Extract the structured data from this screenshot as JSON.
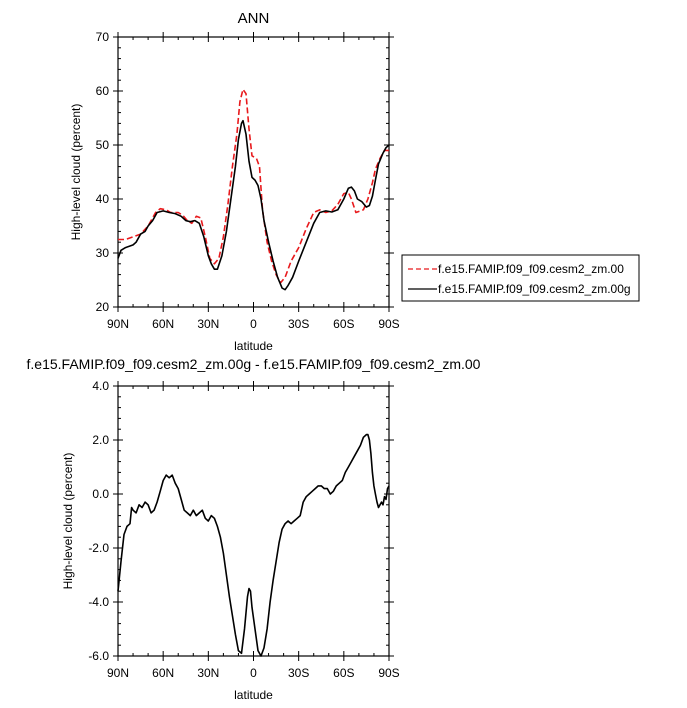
{
  "chart_data": [
    {
      "type": "line",
      "title": "ANN",
      "xlabel": "latitude",
      "ylabel": "High-level cloud (percent)",
      "xlim": [
        -90,
        90
      ],
      "ylim": [
        20,
        70
      ],
      "x_tick_values": [
        -90,
        -60,
        -30,
        0,
        30,
        60,
        90
      ],
      "x_tick_labels": [
        "90N",
        "60N",
        "30N",
        "0",
        "30S",
        "60S",
        "90S"
      ],
      "y_tick_values": [
        20,
        30,
        40,
        50,
        60,
        70
      ],
      "y_tick_labels": [
        "20",
        "30",
        "40",
        "50",
        "60",
        "70"
      ],
      "legend": "right",
      "series": [
        {
          "name": "f.e15.FAMIP.f09_f09.cesm2_zm.00",
          "color": "#e8191c",
          "dash": "dashed",
          "points": [
            [
              -90,
              32.5
            ],
            [
              -85,
              32.5
            ],
            [
              -80,
              33.0
            ],
            [
              -75,
              33.5
            ],
            [
              -70,
              35.0
            ],
            [
              -65,
              37.5
            ],
            [
              -62,
              38.2
            ],
            [
              -58,
              38.0
            ],
            [
              -55,
              37.5
            ],
            [
              -50,
              37.5
            ],
            [
              -47,
              37.0
            ],
            [
              -44,
              36.0
            ],
            [
              -41,
              35.5
            ],
            [
              -38,
              36.8
            ],
            [
              -35,
              36.5
            ],
            [
              -32,
              33.0
            ],
            [
              -29,
              29.0
            ],
            [
              -26,
              28.0
            ],
            [
              -23,
              29.0
            ],
            [
              -20,
              33.0
            ],
            [
              -17,
              39.0
            ],
            [
              -14,
              46.0
            ],
            [
              -11,
              52.0
            ],
            [
              -9,
              58.0
            ],
            [
              -7,
              60.3
            ],
            [
              -5,
              59.5
            ],
            [
              -3,
              53.0
            ],
            [
              -1,
              48.0
            ],
            [
              2,
              47.5
            ],
            [
              4,
              46.0
            ],
            [
              6,
              38.0
            ],
            [
              9,
              32.0
            ],
            [
              12,
              28.5
            ],
            [
              15,
              26.0
            ],
            [
              18,
              24.5
            ],
            [
              21,
              25.5
            ],
            [
              25,
              28.5
            ],
            [
              30,
              31.0
            ],
            [
              35,
              34.5
            ],
            [
              40,
              37.5
            ],
            [
              44,
              38.0
            ],
            [
              48,
              37.5
            ],
            [
              52,
              37.8
            ],
            [
              56,
              39.0
            ],
            [
              60,
              41.0
            ],
            [
              63,
              41.2
            ],
            [
              65,
              40.0
            ],
            [
              68,
              37.5
            ],
            [
              71,
              37.8
            ],
            [
              73,
              38.0
            ],
            [
              76,
              40.0
            ],
            [
              79,
              43.0
            ],
            [
              81,
              45.5
            ],
            [
              84,
              47.5
            ],
            [
              87,
              49.0
            ],
            [
              90,
              49.0
            ]
          ]
        },
        {
          "name": "f.e15.FAMIP.f09_f09.cesm2_zm.00g",
          "color": "#000000",
          "dash": "solid",
          "points": [
            [
              -90,
              29.0
            ],
            [
              -88,
              30.5
            ],
            [
              -85,
              31.0
            ],
            [
              -82,
              31.3
            ],
            [
              -80,
              31.5
            ],
            [
              -78,
              32.0
            ],
            [
              -75,
              33.5
            ],
            [
              -72,
              34.0
            ],
            [
              -70,
              35.0
            ],
            [
              -67,
              36.0
            ],
            [
              -64,
              37.5
            ],
            [
              -60,
              37.8
            ],
            [
              -56,
              37.5
            ],
            [
              -52,
              37.3
            ],
            [
              -48,
              36.8
            ],
            [
              -45,
              36.0
            ],
            [
              -42,
              35.8
            ],
            [
              -39,
              36.0
            ],
            [
              -36,
              35.5
            ],
            [
              -33,
              33.0
            ],
            [
              -30,
              29.5
            ],
            [
              -28,
              28.0
            ],
            [
              -26,
              27.0
            ],
            [
              -24,
              27.0
            ],
            [
              -21,
              29.5
            ],
            [
              -18,
              34.0
            ],
            [
              -15,
              40.0
            ],
            [
              -12,
              46.0
            ],
            [
              -10,
              51.0
            ],
            [
              -8,
              54.0
            ],
            [
              -7,
              54.5
            ],
            [
              -5,
              52.0
            ],
            [
              -3,
              47.0
            ],
            [
              -1,
              44.0
            ],
            [
              1,
              43.5
            ],
            [
              3,
              42.5
            ],
            [
              5,
              40.0
            ],
            [
              7,
              36.0
            ],
            [
              10,
              32.0
            ],
            [
              13,
              28.5
            ],
            [
              16,
              25.5
            ],
            [
              19,
              23.5
            ],
            [
              21,
              23.2
            ],
            [
              23,
              24.0
            ],
            [
              26,
              25.5
            ],
            [
              30,
              28.5
            ],
            [
              35,
              32.0
            ],
            [
              40,
              35.5
            ],
            [
              44,
              37.5
            ],
            [
              48,
              37.8
            ],
            [
              52,
              37.6
            ],
            [
              56,
              38.0
            ],
            [
              60,
              40.0
            ],
            [
              63,
              42.0
            ],
            [
              65,
              42.2
            ],
            [
              67,
              41.5
            ],
            [
              69,
              40.0
            ],
            [
              72,
              39.5
            ],
            [
              75,
              38.5
            ],
            [
              77,
              38.8
            ],
            [
              79,
              40.5
            ],
            [
              81,
              43.5
            ],
            [
              83,
              46.5
            ],
            [
              86,
              48.5
            ],
            [
              88,
              49.5
            ],
            [
              90,
              50.0
            ]
          ]
        }
      ]
    },
    {
      "type": "line",
      "title": "f.e15.FAMIP.f09_f09.cesm2_zm.00g - f.e15.FAMIP.f09_f09.cesm2_zm.00",
      "xlabel": "latitude",
      "ylabel": "High-level cloud (percent)",
      "xlim": [
        -90,
        90
      ],
      "ylim": [
        -6.0,
        4.0
      ],
      "x_tick_values": [
        -90,
        -60,
        -30,
        0,
        30,
        60,
        90
      ],
      "x_tick_labels": [
        "90N",
        "60N",
        "30N",
        "0",
        "30S",
        "60S",
        "90S"
      ],
      "y_tick_values": [
        -6.0,
        -4.0,
        -2.0,
        0.0,
        2.0,
        4.0
      ],
      "y_tick_labels": [
        "-6.0",
        "-4.0",
        "-2.0",
        "0.0",
        "2.0",
        "4.0"
      ],
      "series": [
        {
          "color": "#000000",
          "dash": "solid",
          "points": [
            [
              -90,
              -3.6
            ],
            [
              -88,
              -2.5
            ],
            [
              -86,
              -1.5
            ],
            [
              -84,
              -1.2
            ],
            [
              -82,
              -1.1
            ],
            [
              -81,
              -0.5
            ],
            [
              -80,
              -0.6
            ],
            [
              -78,
              -0.7
            ],
            [
              -76,
              -0.4
            ],
            [
              -74,
              -0.5
            ],
            [
              -72,
              -0.3
            ],
            [
              -70,
              -0.4
            ],
            [
              -68,
              -0.7
            ],
            [
              -66,
              -0.6
            ],
            [
              -64,
              -0.3
            ],
            [
              -62,
              0.1
            ],
            [
              -60,
              0.5
            ],
            [
              -58,
              0.7
            ],
            [
              -56,
              0.6
            ],
            [
              -54,
              0.7
            ],
            [
              -52,
              0.4
            ],
            [
              -50,
              0.2
            ],
            [
              -48,
              -0.2
            ],
            [
              -46,
              -0.6
            ],
            [
              -44,
              -0.7
            ],
            [
              -42,
              -0.8
            ],
            [
              -40,
              -0.6
            ],
            [
              -38,
              -0.8
            ],
            [
              -36,
              -0.7
            ],
            [
              -34,
              -0.6
            ],
            [
              -32,
              -0.9
            ],
            [
              -30,
              -1.0
            ],
            [
              -28,
              -0.8
            ],
            [
              -26,
              -0.9
            ],
            [
              -24,
              -1.2
            ],
            [
              -22,
              -1.6
            ],
            [
              -20,
              -2.2
            ],
            [
              -18,
              -3.0
            ],
            [
              -16,
              -3.8
            ],
            [
              -14,
              -4.5
            ],
            [
              -12,
              -5.2
            ],
            [
              -10,
              -5.8
            ],
            [
              -8,
              -5.9
            ],
            [
              -6,
              -5.0
            ],
            [
              -4,
              -3.8
            ],
            [
              -3,
              -3.5
            ],
            [
              -2,
              -3.6
            ],
            [
              -1,
              -4.2
            ],
            [
              1,
              -5.0
            ],
            [
              3,
              -5.8
            ],
            [
              5,
              -6.0
            ],
            [
              7,
              -5.7
            ],
            [
              9,
              -5.0
            ],
            [
              11,
              -4.0
            ],
            [
              13,
              -3.2
            ],
            [
              15,
              -2.5
            ],
            [
              17,
              -1.8
            ],
            [
              19,
              -1.3
            ],
            [
              21,
              -1.1
            ],
            [
              23,
              -1.0
            ],
            [
              25,
              -1.1
            ],
            [
              27,
              -1.0
            ],
            [
              29,
              -0.9
            ],
            [
              31,
              -0.8
            ],
            [
              33,
              -0.3
            ],
            [
              35,
              -0.1
            ],
            [
              37,
              0.0
            ],
            [
              39,
              0.1
            ],
            [
              41,
              0.2
            ],
            [
              43,
              0.3
            ],
            [
              45,
              0.3
            ],
            [
              47,
              0.2
            ],
            [
              49,
              0.2
            ],
            [
              51,
              0.0
            ],
            [
              53,
              0.1
            ],
            [
              55,
              0.3
            ],
            [
              57,
              0.4
            ],
            [
              59,
              0.5
            ],
            [
              61,
              0.8
            ],
            [
              63,
              1.0
            ],
            [
              65,
              1.2
            ],
            [
              67,
              1.4
            ],
            [
              69,
              1.6
            ],
            [
              71,
              1.8
            ],
            [
              73,
              2.1
            ],
            [
              75,
              2.2
            ],
            [
              76,
              2.2
            ],
            [
              77,
              2.0
            ],
            [
              78,
              1.5
            ],
            [
              79,
              0.8
            ],
            [
              80,
              0.3
            ],
            [
              81,
              0.0
            ],
            [
              82,
              -0.3
            ],
            [
              83,
              -0.5
            ],
            [
              84,
              -0.4
            ],
            [
              85,
              -0.3
            ],
            [
              86,
              -0.4
            ],
            [
              87,
              -0.1
            ],
            [
              88,
              -0.2
            ],
            [
              89,
              0.2
            ],
            [
              90,
              0.3
            ]
          ]
        }
      ]
    }
  ]
}
